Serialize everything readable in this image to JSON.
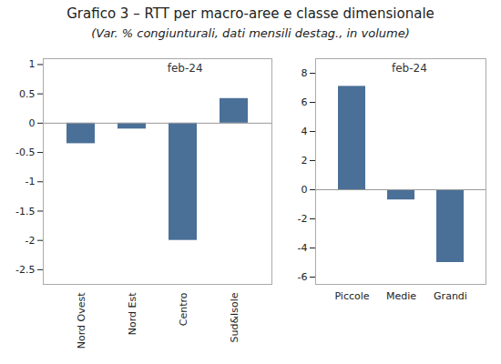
{
  "chart_data": [
    {
      "type": "bar",
      "title": "Grafico 3 – RTT per macro-aree e classe dimensionale",
      "subtitle": "(Var. % congiunturali, dati mensili destag., in volume)",
      "categories": [
        "Nord Ovest",
        "Nord Est",
        "Centro",
        "Sud&Isole"
      ],
      "values": [
        -0.35,
        -0.1,
        -2.0,
        0.42
      ],
      "color": "#4a7098",
      "ylim": [
        -2.75,
        1.1
      ],
      "yticks": [
        -2.5,
        -2,
        -1.5,
        -1,
        -0.5,
        0,
        0.5,
        1
      ],
      "annotations": [
        "feb-24"
      ],
      "grid": false
    },
    {
      "type": "bar",
      "categories": [
        "Piccole",
        "Medie",
        "Grandi"
      ],
      "values": [
        7.1,
        -0.7,
        -5.0
      ],
      "color": "#4a7098",
      "ylim": [
        -6.5,
        9.0
      ],
      "yticks": [
        -6,
        -4,
        -2,
        0,
        2,
        4,
        6,
        8
      ],
      "annotations": [
        "feb-24"
      ],
      "grid": false
    }
  ]
}
